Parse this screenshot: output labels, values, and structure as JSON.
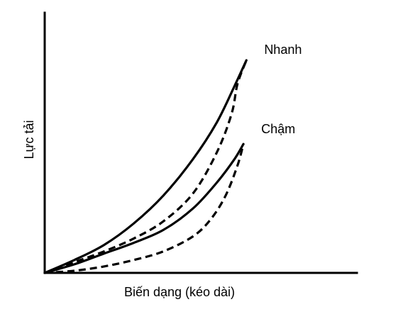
{
  "chart_data": {
    "type": "line",
    "title": "",
    "xlabel": "Biến dạng (kéo dài)",
    "ylabel": "Lực tải",
    "xlim": [
      0,
      1
    ],
    "ylim": [
      0,
      1
    ],
    "grid": false,
    "legend": "none",
    "annotations": [
      {
        "text": "Nhanh",
        "x": 0.74,
        "y": 1.02
      },
      {
        "text": "Chậm",
        "x": 0.73,
        "y": 0.65
      }
    ],
    "series": [
      {
        "group": "Nhanh",
        "segment": "loading",
        "style": "solid",
        "color": "#000000",
        "x": [
          0.0,
          0.1,
          0.2,
          0.3,
          0.4,
          0.5,
          0.58,
          0.64,
          0.68
        ],
        "y": [
          0.0,
          0.06,
          0.13,
          0.23,
          0.36,
          0.53,
          0.7,
          0.87,
          0.99
        ]
      },
      {
        "group": "Nhanh",
        "segment": "unloading",
        "style": "dashed",
        "color": "#000000",
        "x": [
          0.0,
          0.1,
          0.2,
          0.3,
          0.4,
          0.5,
          0.58,
          0.63,
          0.65,
          0.68
        ],
        "y": [
          0.0,
          0.05,
          0.1,
          0.16,
          0.24,
          0.37,
          0.56,
          0.74,
          0.88,
          0.99
        ]
      },
      {
        "group": "Chậm",
        "segment": "loading",
        "style": "solid",
        "color": "#000000",
        "x": [
          0.0,
          0.1,
          0.2,
          0.3,
          0.4,
          0.5,
          0.58,
          0.64,
          0.67
        ],
        "y": [
          0.0,
          0.04,
          0.09,
          0.14,
          0.2,
          0.3,
          0.42,
          0.53,
          0.6
        ]
      },
      {
        "group": "Chậm",
        "segment": "unloading",
        "style": "dashed",
        "color": "#000000",
        "x": [
          0.0,
          0.1,
          0.2,
          0.3,
          0.4,
          0.5,
          0.56,
          0.61,
          0.65,
          0.67
        ],
        "y": [
          0.0,
          0.01,
          0.03,
          0.06,
          0.1,
          0.17,
          0.25,
          0.36,
          0.5,
          0.6
        ]
      }
    ]
  }
}
